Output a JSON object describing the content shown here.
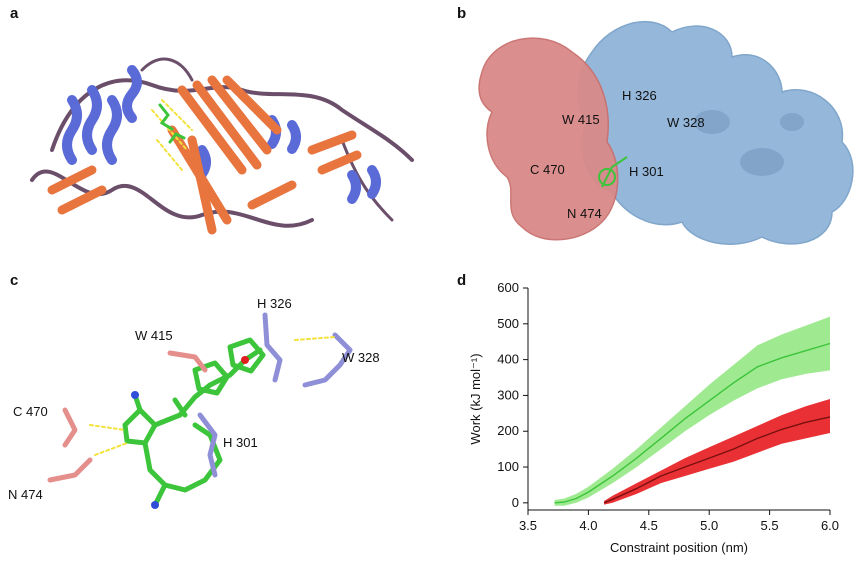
{
  "panels": {
    "a": {
      "label": "a"
    },
    "b": {
      "label": "b",
      "residues": [
        "H 326",
        "W 415",
        "W 328",
        "C 470",
        "H 301",
        "N 474"
      ]
    },
    "c": {
      "label": "c",
      "residues": [
        "H 326",
        "W 415",
        "W 328",
        "C 470",
        "H 301",
        "N 474"
      ]
    },
    "d": {
      "label": "d"
    }
  },
  "colors": {
    "green_fill": "#8ee67e",
    "green_line": "#3cc43a",
    "red_fill": "#e8262a",
    "red_line": "#7a0f0f",
    "protein_blue": "#5a6ad6",
    "protein_orange": "#e8743e",
    "surface_blue": "#8fb4d9",
    "surface_red": "#d98a88"
  },
  "chart_data": {
    "type": "line",
    "xlabel": "Constraint position (nm)",
    "ylabel": "Work (kJ mol⁻¹)",
    "xlim": [
      3.5,
      6.0
    ],
    "ylim": [
      -20,
      600
    ],
    "xticks": [
      "3.5",
      "4.0",
      "4.5",
      "5.0",
      "5.5",
      "6.0"
    ],
    "yticks": [
      "0",
      "100",
      "200",
      "300",
      "400",
      "500",
      "600"
    ],
    "grid": false,
    "series": [
      {
        "color": "green",
        "x": [
          3.72,
          3.8,
          3.9,
          4.0,
          4.2,
          4.4,
          4.6,
          4.8,
          5.0,
          5.2,
          5.4,
          5.6,
          5.8,
          6.0
        ],
        "y": [
          0,
          2,
          12,
          30,
          75,
          125,
          180,
          235,
          285,
          335,
          380,
          405,
          425,
          445
        ],
        "upper": [
          8,
          12,
          25,
          45,
          95,
          150,
          210,
          270,
          330,
          385,
          440,
          470,
          495,
          520
        ],
        "lower": [
          -8,
          -8,
          0,
          15,
          55,
          100,
          150,
          200,
          245,
          285,
          320,
          345,
          360,
          370
        ]
      },
      {
        "color": "red",
        "x": [
          4.13,
          4.2,
          4.4,
          4.6,
          4.8,
          5.0,
          5.2,
          5.4,
          5.6,
          5.8,
          6.0
        ],
        "y": [
          0,
          10,
          40,
          75,
          100,
          125,
          150,
          180,
          205,
          225,
          240
        ],
        "upper": [
          5,
          20,
          55,
          90,
          125,
          155,
          185,
          215,
          245,
          270,
          290
        ],
        "lower": [
          -5,
          0,
          25,
          55,
          75,
          95,
          115,
          140,
          165,
          180,
          195
        ]
      }
    ]
  }
}
